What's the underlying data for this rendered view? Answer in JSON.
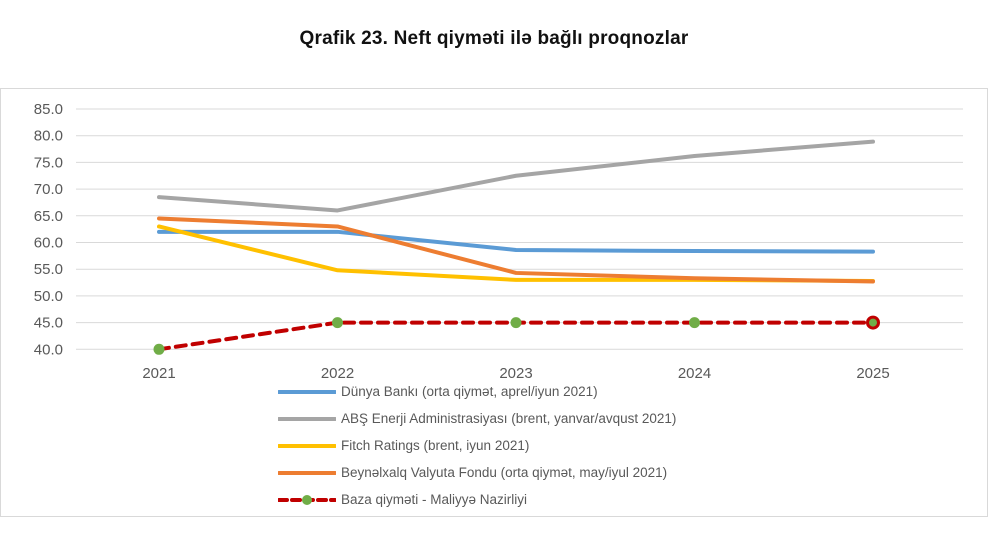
{
  "chart_data": {
    "type": "line",
    "title": "Qrafik 23. Neft qiyməti ilə bağlı proqnozlar",
    "categories": [
      "2021",
      "2022",
      "2023",
      "2024",
      "2025"
    ],
    "ylim": [
      40,
      85
    ],
    "ytick_step": 5,
    "ytick_labels": [
      "40.0",
      "45.0",
      "50.0",
      "55.0",
      "60.0",
      "65.0",
      "70.0",
      "75.0",
      "80.0",
      "85.0"
    ],
    "grid": "horizontal",
    "legend_position": "bottom-left",
    "axis_text_color": "#595959",
    "gridline_color": "#d9d9d9",
    "series": [
      {
        "name": "Dünya Bankı (orta qiymət, aprel/iyun 2021)",
        "color": "#5B9BD5",
        "style": "solid",
        "values": [
          62.0,
          62.0,
          58.6,
          58.4,
          58.3
        ]
      },
      {
        "name": "ABŞ Enerji Administrasiyası (brent, yanvar/avqust 2021)",
        "color": "#A5A5A5",
        "style": "solid",
        "values": [
          68.5,
          66.0,
          72.5,
          76.2,
          78.9
        ]
      },
      {
        "name": "Fitch Ratings (brent, iyun 2021)",
        "color": "#FFC000",
        "style": "solid",
        "values": [
          63.0,
          54.8,
          53.0,
          53.0,
          52.8
        ]
      },
      {
        "name": "Beynəlxalq Valyuta Fondu (orta qiymət, may/iyul 2021)",
        "color": "#ED7D31",
        "style": "solid",
        "values": [
          64.5,
          63.0,
          54.3,
          53.3,
          52.7
        ]
      },
      {
        "name": "Baza qiyməti - Maliyyə Nazirliyi",
        "color": "#C00000",
        "style": "dashed",
        "marker": {
          "shape": "circle",
          "fill": "#70AD47"
        },
        "values": [
          40.0,
          45.0,
          45.0,
          45.0,
          45.0
        ]
      }
    ]
  }
}
